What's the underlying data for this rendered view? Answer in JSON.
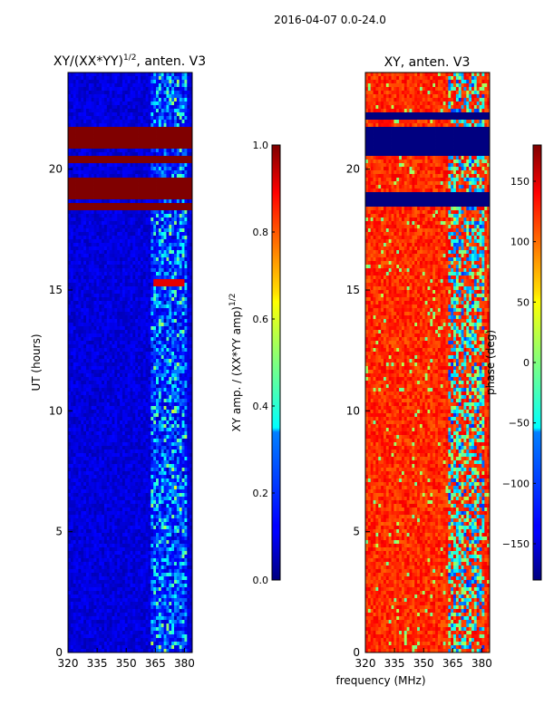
{
  "figure": {
    "suptitle": "2016-04-07 0.0-24.0",
    "xlabel_shared": "frequency (MHz)"
  },
  "chart_data": [
    {
      "type": "heatmap",
      "title_main": "XY/(XX*YY)",
      "title_exp": "1/2",
      "title_tail": ", anten. V3",
      "xlabel": "",
      "ylabel": "UT (hours)",
      "xlim": [
        320,
        384
      ],
      "ylim": [
        0,
        24
      ],
      "xticks": [
        320,
        335,
        350,
        365,
        380
      ],
      "yticks": [
        0,
        5,
        10,
        15,
        20
      ],
      "colorbar": {
        "label_main": "XY amp. / (XX*YY amp)",
        "label_exp": "1/2",
        "range": [
          0.0,
          1.0
        ],
        "ticks": [
          "0.0",
          "0.2",
          "0.4",
          "0.6",
          "0.8",
          "1.0"
        ],
        "tick_values": [
          0.0,
          0.2,
          0.4,
          0.6,
          0.8,
          1.0
        ]
      },
      "saturated_bands_hours": [
        [
          18.3,
          18.6
        ],
        [
          18.8,
          19.6
        ],
        [
          20.2,
          20.5
        ],
        [
          20.9,
          21.7
        ]
      ],
      "noisy_band_mhz": [
        363,
        381
      ],
      "bright_burst": {
        "ut": [
          15.1,
          15.5
        ],
        "freq_mhz": [
          364,
          380
        ],
        "value": 0.9
      }
    },
    {
      "type": "heatmap",
      "title_main": "XY, anten. V3",
      "xlabel": "frequency (MHz)",
      "ylabel": "",
      "xlim": [
        320,
        384
      ],
      "ylim": [
        0,
        24
      ],
      "xticks": [
        320,
        335,
        350,
        365,
        380
      ],
      "yticks": [
        0,
        5,
        10,
        15,
        20
      ],
      "colorbar": {
        "label_main": "phase (deg)",
        "range": [
          -180,
          180
        ],
        "ticks": [
          "−150",
          "−100",
          "−50",
          "0",
          "50",
          "100",
          "150"
        ],
        "tick_values": [
          -150,
          -100,
          -50,
          0,
          50,
          100,
          150
        ]
      },
      "flagged_bands_hours": [
        [
          18.5,
          19.0
        ],
        [
          20.5,
          21.8
        ],
        [
          22.0,
          22.3
        ]
      ],
      "dominant_phase_deg": 140,
      "disturbed_band_mhz": [
        363,
        381
      ]
    }
  ],
  "colors": {
    "frame": "#000000",
    "background": "#ffffff"
  }
}
